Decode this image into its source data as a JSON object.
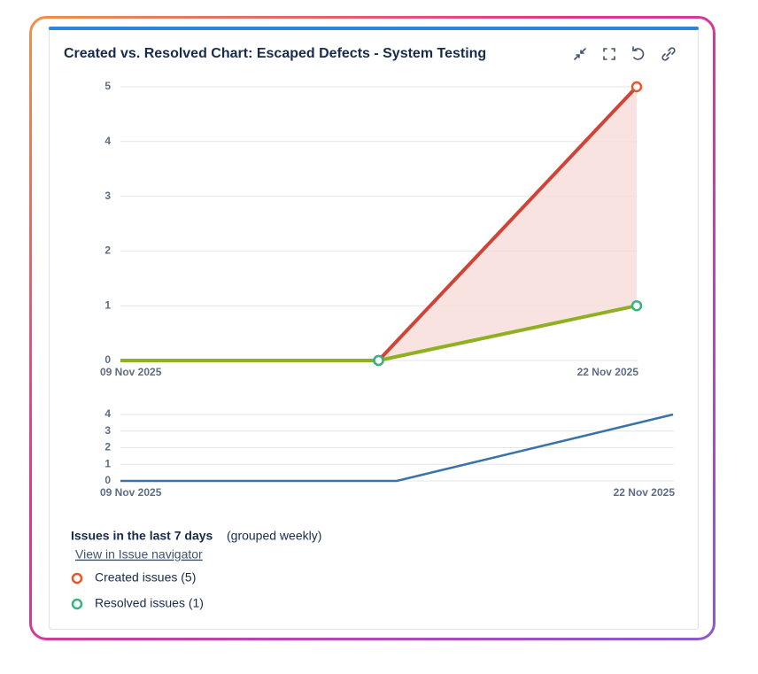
{
  "gadget": {
    "title": "Created vs. Resolved Chart: Escaped Defects - System Testing",
    "summary_label": "Issues in the last 7 days",
    "summary_note": "(grouped weekly)",
    "link": "View in Issue navigator"
  },
  "chart_data": [
    {
      "type": "line",
      "categories": [
        "09 Nov 2025",
        null,
        "22 Nov 2025"
      ],
      "series": [
        {
          "name": "Created issues (5)",
          "color": "#d04437",
          "marker_color": "#e8562e",
          "values": [
            0,
            0,
            5
          ]
        },
        {
          "name": "Resolved issues (1)",
          "color": "#8eb021",
          "marker_color": "#36b37e",
          "values": [
            0,
            0,
            1
          ]
        }
      ],
      "area_color": "#f8dcd8",
      "ylim": [
        0,
        5
      ],
      "yticks": [
        0,
        1,
        2,
        3,
        4,
        5
      ],
      "grid": true
    },
    {
      "type": "line",
      "categories": [
        "09 Nov 2025",
        null,
        "22 Nov 2025"
      ],
      "values": [
        0,
        0,
        4
      ],
      "color": "#3b73a8",
      "ylim": [
        0,
        4
      ],
      "yticks": [
        0,
        1,
        2,
        3,
        4
      ],
      "grid": true
    }
  ]
}
